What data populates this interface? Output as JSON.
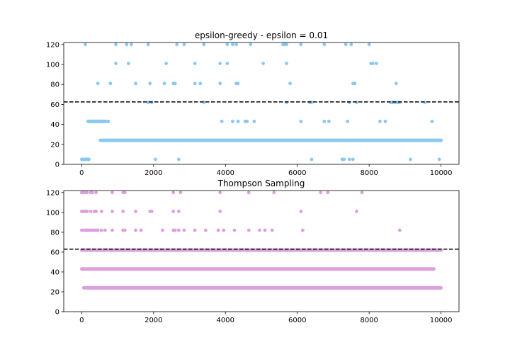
{
  "chart_data": [
    {
      "type": "scatter",
      "title": "epsilon-greedy - epsilon = 0.01",
      "xlabel": "",
      "ylabel": "",
      "xlim": [
        -500,
        10500
      ],
      "ylim": [
        0,
        122
      ],
      "xticks": [
        0,
        2000,
        4000,
        6000,
        8000,
        10000
      ],
      "yticks": [
        0,
        20,
        40,
        60,
        80,
        100,
        120
      ],
      "grid": false,
      "marker_color": "#89c9f0",
      "reference_line": {
        "y": 62.5,
        "style": "dashed",
        "color": "#000000"
      },
      "series": [
        {
          "levels": [
            {
              "y": 5,
              "points": [
                0,
                20,
                40,
                60,
                80,
                100,
                120,
                140,
                160,
                180,
                200,
                2050,
                2700,
                6400,
                7250,
                7300,
                7450,
                7550,
                9150,
                9950
              ]
            },
            {
              "y": 24,
              "runs": [
                [
                  520,
                  10000
                ]
              ]
            },
            {
              "y": 43,
              "runs": [
                [
                  180,
                  660
                ]
              ],
              "points": [
                720,
                740,
                3900,
                4200,
                4350,
                4550,
                4580,
                4600,
                4800,
                6100,
                6750,
                6880,
                7400,
                8300,
                8450,
                9750
              ]
            },
            {
              "y": 62,
              "points": [
                1850,
                1950,
                3400,
                5700,
                6350,
                6400,
                7450,
                7650,
                8600,
                8650,
                8700,
                8750,
                8800,
                8850,
                9550
              ]
            },
            {
              "y": 81,
              "points": [
                450,
                800,
                1500,
                1900,
                2300,
                2550,
                2600,
                3150,
                3300,
                3850,
                4300,
                4350,
                5800,
                7550,
                7600,
                8750
              ]
            },
            {
              "y": 101,
              "points": [
                950,
                1300,
                2350,
                3150,
                3850,
                4050,
                5050,
                5700,
                8050,
                8100,
                8200
              ]
            },
            {
              "y": 120,
              "points": [
                100,
                950,
                1250,
                1380,
                1850,
                2650,
                2850,
                3400,
                4050,
                4200,
                4300,
                4700,
                5600,
                5650,
                5700,
                6100,
                6750,
                7350,
                7500,
                8000
              ]
            }
          ]
        }
      ]
    },
    {
      "type": "scatter",
      "title": "Thompson Sampling",
      "xlabel": "",
      "ylabel": "",
      "xlim": [
        -500,
        10500
      ],
      "ylim": [
        0,
        122
      ],
      "xticks": [
        0,
        2000,
        4000,
        6000,
        8000,
        10000
      ],
      "yticks": [
        0,
        20,
        40,
        60,
        80,
        100,
        120
      ],
      "grid": false,
      "marker_color": "#dda0dd",
      "reference_line": {
        "y": 63,
        "style": "dashed",
        "color": "#000000"
      },
      "series": [
        {
          "levels": [
            {
              "y": 24,
              "runs": [
                [
                  60,
                  10000
                ]
              ]
            },
            {
              "y": 43,
              "runs": [
                [
                  0,
                  9800
                ]
              ]
            },
            {
              "y": 62,
              "runs": [
                [
                  0,
                  10000
                ]
              ]
            },
            {
              "y": 82,
              "points": [
                0,
                50,
                100,
                150,
                200,
                250,
                300,
                350,
                400,
                450,
                550,
                650,
                850,
                1150,
                1200,
                1500,
                1650,
                2250,
                2550,
                2600,
                2700,
                2850,
                3150,
                3450,
                3800,
                3950,
                4250,
                4650,
                4950,
                5100,
                5300,
                6150,
                8850
              ]
            },
            {
              "y": 101,
              "points": [
                0,
                50,
                100,
                150,
                250,
                350,
                400,
                550,
                850,
                1150,
                1500,
                1900,
                1950,
                2550,
                2700,
                3850,
                6100,
                7650
              ]
            },
            {
              "y": 120,
              "points": [
                0,
                50,
                100,
                150,
                250,
                300,
                400,
                850,
                1150,
                1200,
                2550,
                2750,
                3850,
                4650,
                5350,
                6650,
                6850,
                7800
              ]
            }
          ]
        }
      ]
    }
  ]
}
